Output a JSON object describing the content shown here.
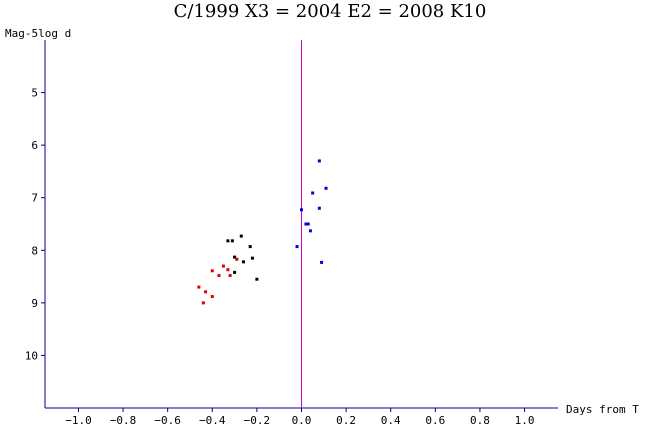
{
  "chart_data": {
    "type": "scatter",
    "title": "C/1999 X3 = 2004 E2 = 2008 K10",
    "xlabel": "Days from T",
    "ylabel": "Mag-5log d",
    "xlim": [
      -1.15,
      1.15
    ],
    "ylim": [
      4.0,
      11.0
    ],
    "y_inverted": true,
    "grid": false,
    "legend": "none",
    "xticks": [
      -1.0,
      -0.8,
      -0.6,
      -0.4,
      -0.2,
      0.0,
      0.2,
      0.4,
      0.6,
      0.8,
      1.0
    ],
    "xtick_labels": [
      "−1.0",
      "−0.8",
      "−0.6",
      "−0.4",
      "−0.2",
      "0.0",
      "0.2",
      "0.4",
      "0.6",
      "0.8",
      "1.0"
    ],
    "yticks": [
      5,
      6,
      7,
      8,
      9,
      10
    ],
    "ytick_labels": [
      "5",
      "6",
      "7",
      "8",
      "9",
      "10"
    ],
    "reference_line": {
      "x": 0.0,
      "color": "#cc00cc"
    },
    "axis_color": "#00008b",
    "series": [
      {
        "color": "#000000",
        "points": [
          [
            -0.33,
            7.82
          ],
          [
            -0.31,
            7.82
          ],
          [
            -0.27,
            7.73
          ],
          [
            -0.23,
            7.93
          ],
          [
            -0.3,
            8.13
          ],
          [
            -0.26,
            8.22
          ],
          [
            -0.22,
            8.15
          ],
          [
            -0.3,
            8.42
          ],
          [
            -0.2,
            8.55
          ]
        ]
      },
      {
        "color": "#dd0000",
        "points": [
          [
            -0.29,
            8.17
          ],
          [
            -0.35,
            8.3
          ],
          [
            -0.33,
            8.37
          ],
          [
            -0.4,
            8.39
          ],
          [
            -0.37,
            8.48
          ],
          [
            -0.32,
            8.48
          ],
          [
            -0.46,
            8.7
          ],
          [
            -0.43,
            8.79
          ],
          [
            -0.4,
            8.88
          ],
          [
            -0.44,
            9.0
          ]
        ]
      },
      {
        "color": "#0000dd",
        "points": [
          [
            0.08,
            6.3
          ],
          [
            0.11,
            6.82
          ],
          [
            0.05,
            6.91
          ],
          [
            0.08,
            7.2
          ],
          [
            0.0,
            7.23
          ],
          [
            0.02,
            7.5
          ],
          [
            0.03,
            7.5
          ],
          [
            0.04,
            7.63
          ],
          [
            -0.02,
            7.93
          ],
          [
            0.09,
            8.23
          ]
        ]
      }
    ]
  }
}
